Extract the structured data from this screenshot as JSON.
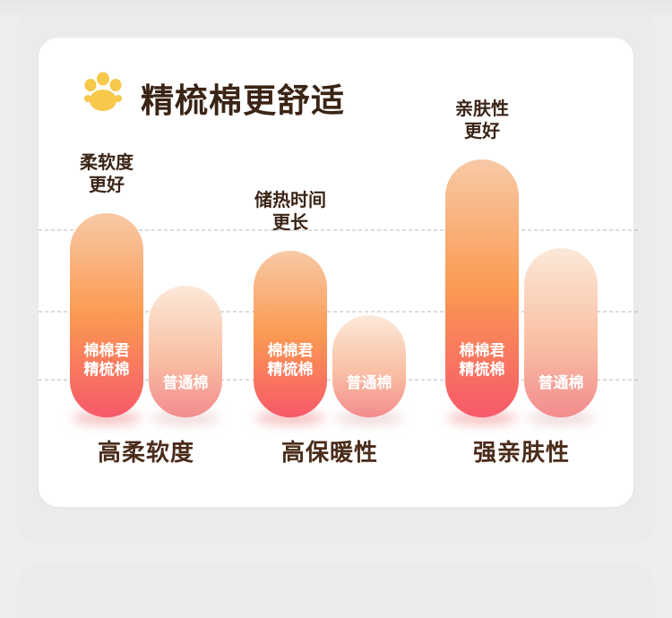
{
  "title": "精梳棉更舒适",
  "title_icon": "paw-icon",
  "colors": {
    "primary_top": "#f8c9a6",
    "primary_mid": "#fb9a52",
    "primary_bottom": "#f7596a",
    "secondary_top": "#fce8d8",
    "secondary_bottom": "#f38c8e",
    "title_text": "#3a2415",
    "category_text": "#4a2c1a",
    "annotation_text": "#3b2516",
    "icon": "#f7c84a"
  },
  "chart_data": {
    "type": "bar",
    "categories": [
      "高柔软度",
      "高保暖性",
      "强亲肤性"
    ],
    "series": [
      {
        "name": "棉棉君精梳棉",
        "label_lines": [
          "棉棉君",
          "精梳棉"
        ],
        "values": [
          7.6,
          6.2,
          9.6
        ]
      },
      {
        "name": "普通棉",
        "label_lines": [
          "普通棉"
        ],
        "values": [
          4.9,
          3.8,
          6.3
        ]
      }
    ],
    "annotations": [
      {
        "category": "高柔软度",
        "lines": [
          "柔软度",
          "更好"
        ]
      },
      {
        "category": "高保暖性",
        "lines": [
          "储热时间",
          "更长"
        ]
      },
      {
        "category": "强亲肤性",
        "lines": [
          "亲肤性",
          "更好"
        ]
      }
    ],
    "ylim": [
      0,
      10
    ],
    "grid": true,
    "legend": "none",
    "xlabel": "",
    "ylabel": ""
  }
}
